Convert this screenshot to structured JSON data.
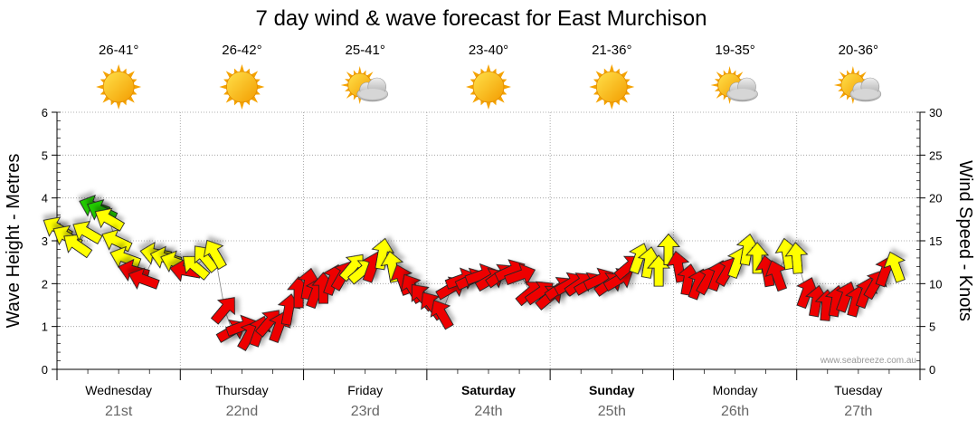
{
  "title": "7 day wind & wave forecast for East Murchison",
  "credit": "www.seabreeze.com.au",
  "colors": {
    "strong": "#ee0000",
    "moderate": "#ffff00",
    "light": "#22cc00"
  },
  "days": [
    {
      "name": "Wednesday",
      "date": "21st",
      "temp": "26-41°",
      "weather_icon": "sun-icon",
      "bold": false
    },
    {
      "name": "Thursday",
      "date": "22nd",
      "temp": "26-42°",
      "weather_icon": "sun-icon",
      "bold": false
    },
    {
      "name": "Friday",
      "date": "23rd",
      "temp": "25-41°",
      "weather_icon": "sun-cloud-icon",
      "bold": false
    },
    {
      "name": "Saturday",
      "date": "24th",
      "temp": "23-40°",
      "weather_icon": "sun-icon",
      "bold": true
    },
    {
      "name": "Sunday",
      "date": "25th",
      "temp": "21-36°",
      "weather_icon": "sun-icon",
      "bold": true
    },
    {
      "name": "Monday",
      "date": "26th",
      "temp": "19-35°",
      "weather_icon": "sun-cloud-icon",
      "bold": false
    },
    {
      "name": "Tuesday",
      "date": "27th",
      "temp": "20-36°",
      "weather_icon": "sun-cloud-icon",
      "bold": false
    }
  ],
  "chart_data": {
    "type": "line",
    "left_axis": {
      "label": "Wave Height - Metres",
      "ylim": [
        0,
        6
      ],
      "ticks": [
        "0",
        "1",
        "2",
        "3",
        "4",
        "5",
        "6"
      ]
    },
    "right_axis": {
      "label": "Wind Speed - Knots",
      "ylim": [
        0,
        30
      ],
      "ticks": [
        "0",
        "5",
        "10",
        "15",
        "20",
        "25",
        "30"
      ]
    },
    "x_days": 7,
    "grid": true,
    "wind": [
      {
        "t": 0.0,
        "kn": 16.5,
        "dir": 120,
        "c": "moderate"
      },
      {
        "t": 0.08,
        "kn": 15.5,
        "dir": 120,
        "c": "moderate"
      },
      {
        "t": 0.16,
        "kn": 14.5,
        "dir": 125,
        "c": "moderate"
      },
      {
        "t": 0.24,
        "kn": 16.0,
        "dir": 120,
        "c": "moderate"
      },
      {
        "t": 0.3,
        "kn": 19.0,
        "dir": 110,
        "c": "light"
      },
      {
        "t": 0.36,
        "kn": 18.5,
        "dir": 115,
        "c": "light"
      },
      {
        "t": 0.42,
        "kn": 17.5,
        "dir": 120,
        "c": "moderate"
      },
      {
        "t": 0.48,
        "kn": 15.0,
        "dir": 115,
        "c": "moderate"
      },
      {
        "t": 0.55,
        "kn": 13.0,
        "dir": 110,
        "c": "moderate"
      },
      {
        "t": 0.62,
        "kn": 11.5,
        "dir": 105,
        "c": "strong"
      },
      {
        "t": 0.7,
        "kn": 10.5,
        "dir": 110,
        "c": "strong"
      },
      {
        "t": 0.8,
        "kn": 13.5,
        "dir": 100,
        "c": "moderate"
      },
      {
        "t": 0.88,
        "kn": 13.0,
        "dir": 105,
        "c": "moderate"
      },
      {
        "t": 0.96,
        "kn": 12.5,
        "dir": 110,
        "c": "moderate"
      },
      {
        "t": 1.04,
        "kn": 11.5,
        "dir": 100,
        "c": "strong"
      },
      {
        "t": 1.12,
        "kn": 12.0,
        "dir": 130,
        "c": "moderate"
      },
      {
        "t": 1.2,
        "kn": 13.0,
        "dir": 140,
        "c": "moderate"
      },
      {
        "t": 1.28,
        "kn": 13.5,
        "dir": 150,
        "c": "moderate"
      },
      {
        "t": 1.36,
        "kn": 7.0,
        "dir": 220,
        "c": "strong"
      },
      {
        "t": 1.42,
        "kn": 4.5,
        "dir": 240,
        "c": "strong"
      },
      {
        "t": 1.5,
        "kn": 5.0,
        "dir": 250,
        "c": "strong"
      },
      {
        "t": 1.56,
        "kn": 4.0,
        "dir": 210,
        "c": "strong"
      },
      {
        "t": 1.64,
        "kn": 4.5,
        "dir": 200,
        "c": "strong"
      },
      {
        "t": 1.72,
        "kn": 5.5,
        "dir": 220,
        "c": "strong"
      },
      {
        "t": 1.8,
        "kn": 5.0,
        "dir": 200,
        "c": "strong"
      },
      {
        "t": 1.88,
        "kn": 7.0,
        "dir": 190,
        "c": "strong"
      },
      {
        "t": 1.96,
        "kn": 9.0,
        "dir": 180,
        "c": "strong"
      },
      {
        "t": 2.04,
        "kn": 10.0,
        "dir": 190,
        "c": "strong"
      },
      {
        "t": 2.1,
        "kn": 9.0,
        "dir": 200,
        "c": "strong"
      },
      {
        "t": 2.16,
        "kn": 9.5,
        "dir": 180,
        "c": "strong"
      },
      {
        "t": 2.24,
        "kn": 10.5,
        "dir": 200,
        "c": "strong"
      },
      {
        "t": 2.32,
        "kn": 11.0,
        "dir": 210,
        "c": "strong"
      },
      {
        "t": 2.4,
        "kn": 12.0,
        "dir": 220,
        "c": "moderate"
      },
      {
        "t": 2.48,
        "kn": 11.5,
        "dir": 230,
        "c": "moderate"
      },
      {
        "t": 2.56,
        "kn": 12.0,
        "dir": 200,
        "c": "strong"
      },
      {
        "t": 2.64,
        "kn": 13.5,
        "dir": 190,
        "c": "moderate"
      },
      {
        "t": 2.72,
        "kn": 12.0,
        "dir": 170,
        "c": "moderate"
      },
      {
        "t": 2.8,
        "kn": 10.5,
        "dir": 160,
        "c": "strong"
      },
      {
        "t": 2.88,
        "kn": 9.5,
        "dir": 150,
        "c": "strong"
      },
      {
        "t": 2.96,
        "kn": 8.5,
        "dir": 140,
        "c": "strong"
      },
      {
        "t": 3.04,
        "kn": 7.5,
        "dir": 145,
        "c": "strong"
      },
      {
        "t": 3.12,
        "kn": 6.5,
        "dir": 150,
        "c": "strong"
      },
      {
        "t": 3.2,
        "kn": 9.5,
        "dir": 240,
        "c": "strong"
      },
      {
        "t": 3.28,
        "kn": 10.5,
        "dir": 250,
        "c": "strong"
      },
      {
        "t": 3.36,
        "kn": 10.5,
        "dir": 245,
        "c": "strong"
      },
      {
        "t": 3.44,
        "kn": 11.0,
        "dir": 250,
        "c": "strong"
      },
      {
        "t": 3.52,
        "kn": 10.5,
        "dir": 240,
        "c": "strong"
      },
      {
        "t": 3.6,
        "kn": 11.0,
        "dir": 235,
        "c": "strong"
      },
      {
        "t": 3.68,
        "kn": 11.5,
        "dir": 245,
        "c": "strong"
      },
      {
        "t": 3.76,
        "kn": 11.0,
        "dir": 250,
        "c": "strong"
      },
      {
        "t": 3.84,
        "kn": 9.0,
        "dir": 230,
        "c": "strong"
      },
      {
        "t": 3.92,
        "kn": 9.0,
        "dir": 235,
        "c": "strong"
      },
      {
        "t": 4.0,
        "kn": 8.5,
        "dir": 230,
        "c": "strong"
      },
      {
        "t": 4.08,
        "kn": 9.5,
        "dir": 235,
        "c": "strong"
      },
      {
        "t": 4.16,
        "kn": 10.0,
        "dir": 240,
        "c": "strong"
      },
      {
        "t": 4.24,
        "kn": 10.0,
        "dir": 235,
        "c": "strong"
      },
      {
        "t": 4.32,
        "kn": 10.0,
        "dir": 240,
        "c": "strong"
      },
      {
        "t": 4.4,
        "kn": 10.5,
        "dir": 245,
        "c": "strong"
      },
      {
        "t": 4.48,
        "kn": 10.0,
        "dir": 235,
        "c": "strong"
      },
      {
        "t": 4.56,
        "kn": 10.5,
        "dir": 240,
        "c": "strong"
      },
      {
        "t": 4.64,
        "kn": 12.0,
        "dir": 230,
        "c": "strong"
      },
      {
        "t": 4.72,
        "kn": 13.0,
        "dir": 200,
        "c": "moderate"
      },
      {
        "t": 4.8,
        "kn": 12.5,
        "dir": 190,
        "c": "moderate"
      },
      {
        "t": 4.88,
        "kn": 11.5,
        "dir": 180,
        "c": "moderate"
      },
      {
        "t": 4.96,
        "kn": 14.0,
        "dir": 180,
        "c": "moderate"
      },
      {
        "t": 5.04,
        "kn": 12.0,
        "dir": 170,
        "c": "strong"
      },
      {
        "t": 5.12,
        "kn": 10.5,
        "dir": 190,
        "c": "strong"
      },
      {
        "t": 5.2,
        "kn": 10.0,
        "dir": 200,
        "c": "strong"
      },
      {
        "t": 5.28,
        "kn": 10.5,
        "dir": 210,
        "c": "strong"
      },
      {
        "t": 5.36,
        "kn": 11.0,
        "dir": 200,
        "c": "strong"
      },
      {
        "t": 5.44,
        "kn": 11.5,
        "dir": 210,
        "c": "strong"
      },
      {
        "t": 5.52,
        "kn": 12.5,
        "dir": 200,
        "c": "moderate"
      },
      {
        "t": 5.6,
        "kn": 14.0,
        "dir": 190,
        "c": "moderate"
      },
      {
        "t": 5.68,
        "kn": 13.0,
        "dir": 180,
        "c": "moderate"
      },
      {
        "t": 5.76,
        "kn": 11.5,
        "dir": 170,
        "c": "strong"
      },
      {
        "t": 5.84,
        "kn": 11.0,
        "dir": 160,
        "c": "strong"
      },
      {
        "t": 5.92,
        "kn": 13.5,
        "dir": 170,
        "c": "moderate"
      },
      {
        "t": 6.0,
        "kn": 13.0,
        "dir": 175,
        "c": "moderate"
      },
      {
        "t": 6.08,
        "kn": 9.0,
        "dir": 200,
        "c": "strong"
      },
      {
        "t": 6.16,
        "kn": 8.0,
        "dir": 190,
        "c": "strong"
      },
      {
        "t": 6.24,
        "kn": 7.5,
        "dir": 185,
        "c": "strong"
      },
      {
        "t": 6.32,
        "kn": 8.0,
        "dir": 190,
        "c": "strong"
      },
      {
        "t": 6.4,
        "kn": 8.5,
        "dir": 200,
        "c": "strong"
      },
      {
        "t": 6.48,
        "kn": 8.0,
        "dir": 195,
        "c": "strong"
      },
      {
        "t": 6.56,
        "kn": 9.0,
        "dir": 200,
        "c": "strong"
      },
      {
        "t": 6.64,
        "kn": 10.0,
        "dir": 210,
        "c": "strong"
      },
      {
        "t": 6.72,
        "kn": 11.5,
        "dir": 200,
        "c": "strong"
      },
      {
        "t": 6.8,
        "kn": 12.0,
        "dir": 160,
        "c": "moderate"
      }
    ]
  }
}
